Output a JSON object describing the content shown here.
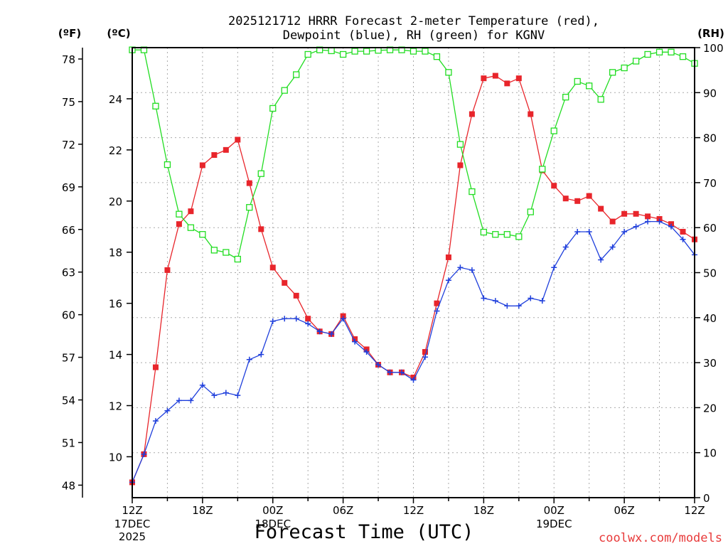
{
  "chart_data": {
    "type": "line",
    "title_line1": "2025121712 HRRR Forecast 2-meter Temperature (red),",
    "title_line2": "Dewpoint (blue), RH (green) for KGNV",
    "unit_f_label": "(ºF)",
    "unit_c_label": "(ºC)",
    "unit_rh_label": "(RH)",
    "xlabel": "Forecast Time (UTC)",
    "watermark": "coolwx.com/models",
    "x_range": [
      0,
      48
    ],
    "c_range": [
      8.4,
      26
    ],
    "rh_range": [
      0,
      100
    ],
    "f_ticks": [
      "48",
      "51",
      "54",
      "57",
      "60",
      "63",
      "66",
      "69",
      "72",
      "75",
      "78"
    ],
    "f_tick_values": [
      48,
      51,
      54,
      57,
      60,
      63,
      66,
      69,
      72,
      75,
      78
    ],
    "c_ticks": [
      "10",
      "12",
      "14",
      "16",
      "18",
      "20",
      "22",
      "24"
    ],
    "c_tick_values": [
      10,
      12,
      14,
      16,
      18,
      20,
      22,
      24
    ],
    "rh_ticks": [
      "0",
      "10",
      "20",
      "30",
      "40",
      "50",
      "60",
      "70",
      "80",
      "90",
      "100"
    ],
    "rh_tick_values": [
      0,
      10,
      20,
      30,
      40,
      50,
      60,
      70,
      80,
      90,
      100
    ],
    "x_ticks": [
      {
        "x": 0,
        "label": "12Z",
        "sub1": "17DEC",
        "sub2": "2025"
      },
      {
        "x": 6,
        "label": "18Z",
        "sub1": "",
        "sub2": ""
      },
      {
        "x": 12,
        "label": "00Z",
        "sub1": "18DEC",
        "sub2": ""
      },
      {
        "x": 18,
        "label": "06Z",
        "sub1": "",
        "sub2": ""
      },
      {
        "x": 24,
        "label": "12Z",
        "sub1": "",
        "sub2": ""
      },
      {
        "x": 30,
        "label": "18Z",
        "sub1": "",
        "sub2": ""
      },
      {
        "x": 36,
        "label": "00Z",
        "sub1": "19DEC",
        "sub2": ""
      },
      {
        "x": 42,
        "label": "06Z",
        "sub1": "",
        "sub2": ""
      },
      {
        "x": 48,
        "label": "12Z",
        "sub1": "",
        "sub2": ""
      }
    ],
    "series": [
      {
        "name": "Temperature",
        "axis": "c",
        "color": "#e8252b",
        "marker": "filled-square",
        "values": [
          9.0,
          10.1,
          13.5,
          17.3,
          19.1,
          19.6,
          21.4,
          21.8,
          22.0,
          22.4,
          20.7,
          18.9,
          17.4,
          16.8,
          16.3,
          15.4,
          14.9,
          14.8,
          15.5,
          14.6,
          14.2,
          13.6,
          13.3,
          13.3,
          13.1,
          14.1,
          16.0,
          17.8,
          21.4,
          23.4,
          24.8,
          24.9,
          24.6,
          24.8,
          23.4,
          21.2,
          20.6,
          20.1,
          20.0,
          20.2,
          19.7,
          19.2,
          19.5,
          19.5,
          19.4,
          19.3,
          19.1,
          18.8,
          18.5
        ]
      },
      {
        "name": "Dewpoint",
        "axis": "c",
        "color": "#1f3fdc",
        "marker": "plus",
        "values": [
          9.0,
          10.1,
          11.4,
          11.8,
          12.2,
          12.2,
          12.8,
          12.4,
          12.5,
          12.4,
          13.8,
          14.0,
          15.3,
          15.4,
          15.4,
          15.2,
          14.9,
          14.8,
          15.4,
          14.5,
          14.1,
          13.6,
          13.3,
          13.3,
          13.0,
          13.9,
          15.7,
          16.9,
          17.4,
          17.3,
          16.2,
          16.1,
          15.9,
          15.9,
          16.2,
          16.1,
          17.4,
          18.2,
          18.8,
          18.8,
          17.7,
          18.2,
          18.8,
          19.0,
          19.2,
          19.2,
          19.0,
          18.5,
          17.9
        ]
      },
      {
        "name": "RH",
        "axis": "rh",
        "color": "#22dd22",
        "marker": "open-square",
        "values": [
          99.5,
          99.5,
          87,
          74,
          63,
          60,
          58.5,
          55,
          54.5,
          53,
          64.5,
          72,
          86.5,
          90.5,
          94,
          98.5,
          99.5,
          99.3,
          98.5,
          99.2,
          99.2,
          99.4,
          99.5,
          99.5,
          99.2,
          99.2,
          98,
          94.5,
          78.5,
          68,
          59,
          58.5,
          58.5,
          58,
          63.5,
          73,
          81.5,
          89,
          92.5,
          91.5,
          88.5,
          94.5,
          95.5,
          97,
          98.5,
          99,
          99,
          98,
          96.5
        ]
      }
    ]
  }
}
